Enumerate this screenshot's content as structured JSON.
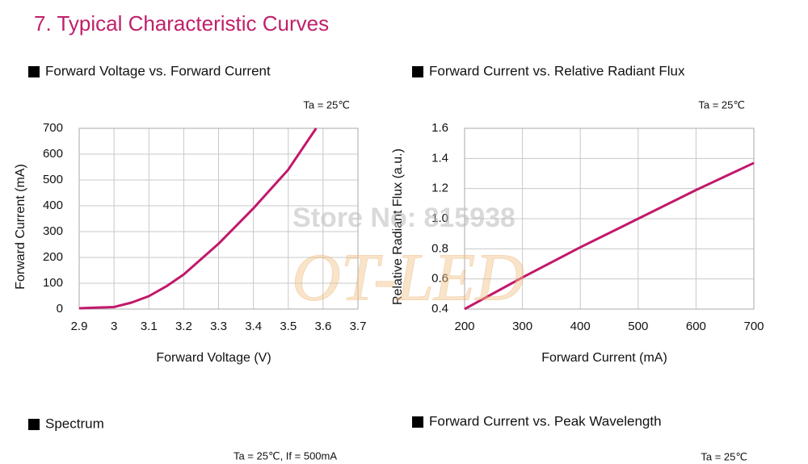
{
  "heading": "7. Typical Characteristic Curves",
  "spectrum": {
    "title": "Spectrum",
    "note": "Ta = 25℃,  If = 500mA"
  },
  "peak_wavelength": {
    "title": "Forward Current vs. Peak Wavelength",
    "note": "Ta = 25℃"
  },
  "watermark": {
    "store": "Store No: 815938",
    "brand": "OT-LED"
  },
  "chart_data": [
    {
      "type": "line",
      "title": "Forward Voltage vs. Forward Current",
      "note": "Ta = 25℃",
      "x_label": "Forward Voltage (V)",
      "y_label": "Forward Current (mA)",
      "x": [
        2.9,
        3.0,
        3.05,
        3.1,
        3.15,
        3.2,
        3.3,
        3.4,
        3.5,
        3.58
      ],
      "values": [
        3,
        8,
        25,
        50,
        88,
        134,
        253,
        390,
        540,
        700
      ],
      "color": "#c2186b",
      "xlim": [
        2.9,
        3.7
      ],
      "xticks": [
        2.9,
        3,
        3.1,
        3.2,
        3.3,
        3.4,
        3.5,
        3.6,
        3.7
      ],
      "ylim": [
        0,
        700
      ],
      "yticks": [
        0,
        100,
        200,
        300,
        400,
        500,
        600,
        700
      ],
      "grid": true
    },
    {
      "type": "line",
      "title": "Forward Current vs. Relative Radiant Flux",
      "note": "Ta = 25℃",
      "x_label": "Forward Current (mA)",
      "y_label": "Relative Radiant Flux (a.u.)",
      "x": [
        200,
        300,
        400,
        500,
        600,
        700
      ],
      "values": [
        0.4,
        0.61,
        0.81,
        1.0,
        1.19,
        1.37
      ],
      "color": "#c2186b",
      "xlim": [
        200,
        700
      ],
      "xticks": [
        200,
        300,
        400,
        500,
        600,
        700
      ],
      "ylim": [
        0.4,
        1.6
      ],
      "yticks": [
        0.4,
        0.6,
        0.8,
        {
          "value": 1,
          "label": "1.0"
        },
        1.2,
        1.4,
        1.6
      ],
      "grid": true
    }
  ]
}
